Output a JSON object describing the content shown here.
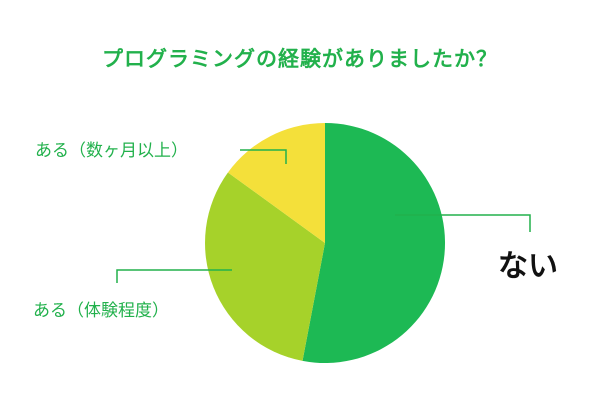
{
  "chart_data": {
    "type": "pie",
    "title": "プログラミングの経験がありましたか？",
    "slices": [
      {
        "label": "ない",
        "value": 53,
        "color": "#1db954"
      },
      {
        "label": "ある（体験程度）",
        "value": 32,
        "color": "#a6d22a"
      },
      {
        "label": "ある（数ヶ月以上）",
        "value": 15,
        "color": "#f4e03a"
      }
    ],
    "start_angle_deg": 0,
    "direction": "clockwise",
    "label_color": "#22b14c",
    "accent_text_color": "#111111"
  }
}
